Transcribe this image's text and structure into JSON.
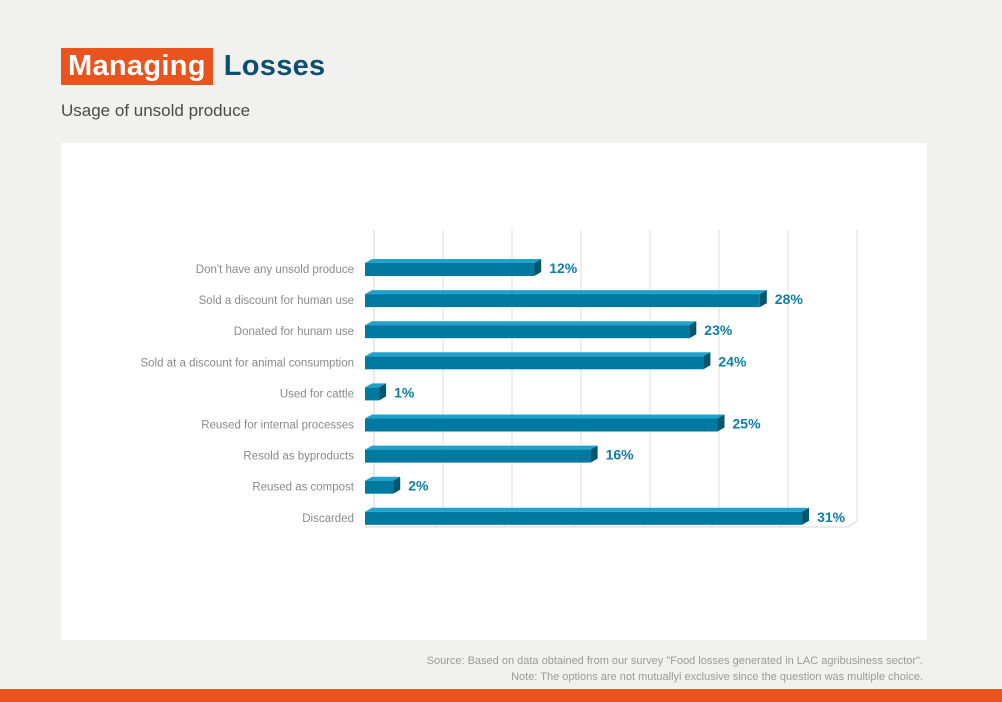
{
  "header": {
    "title_highlight": "Managing",
    "title_rest": "Losses",
    "subtitle": "Usage of unsold produce"
  },
  "footer": {
    "source": "Source: Based on data obtained from our survey \"Food losses generated in LAC agribusiness sector\".",
    "note": "Note: The options are not mutuallyi exclusive since the question was multiple choice."
  },
  "colors": {
    "accent": "#e8531e",
    "title_blue": "#0e4e6e",
    "bar_front": "#0079a1",
    "bar_top": "#1fa3cc",
    "bar_end": "#00566f",
    "value_label": "#0d7ea5"
  },
  "chart_data": {
    "type": "bar",
    "orientation": "horizontal",
    "style": "3d",
    "title": "Usage of unsold produce",
    "xlabel": "",
    "ylabel": "",
    "xlim": [
      0,
      35
    ],
    "grid": true,
    "categories": [
      "Don't have any unsold produce",
      "Sold a discount for human use",
      "Donated for hunam use",
      "Sold at a discount for animal consumption",
      "Used for cattle",
      "Reused for internal processes",
      "Resold as byproducts",
      "Reused as compost",
      "Discarded"
    ],
    "values": [
      12,
      28,
      23,
      24,
      1,
      25,
      16,
      2,
      31
    ],
    "value_labels": [
      "12%",
      "28%",
      "23%",
      "24%",
      "1%",
      "25%",
      "16%",
      "2%",
      "31%"
    ],
    "unit": "%"
  }
}
